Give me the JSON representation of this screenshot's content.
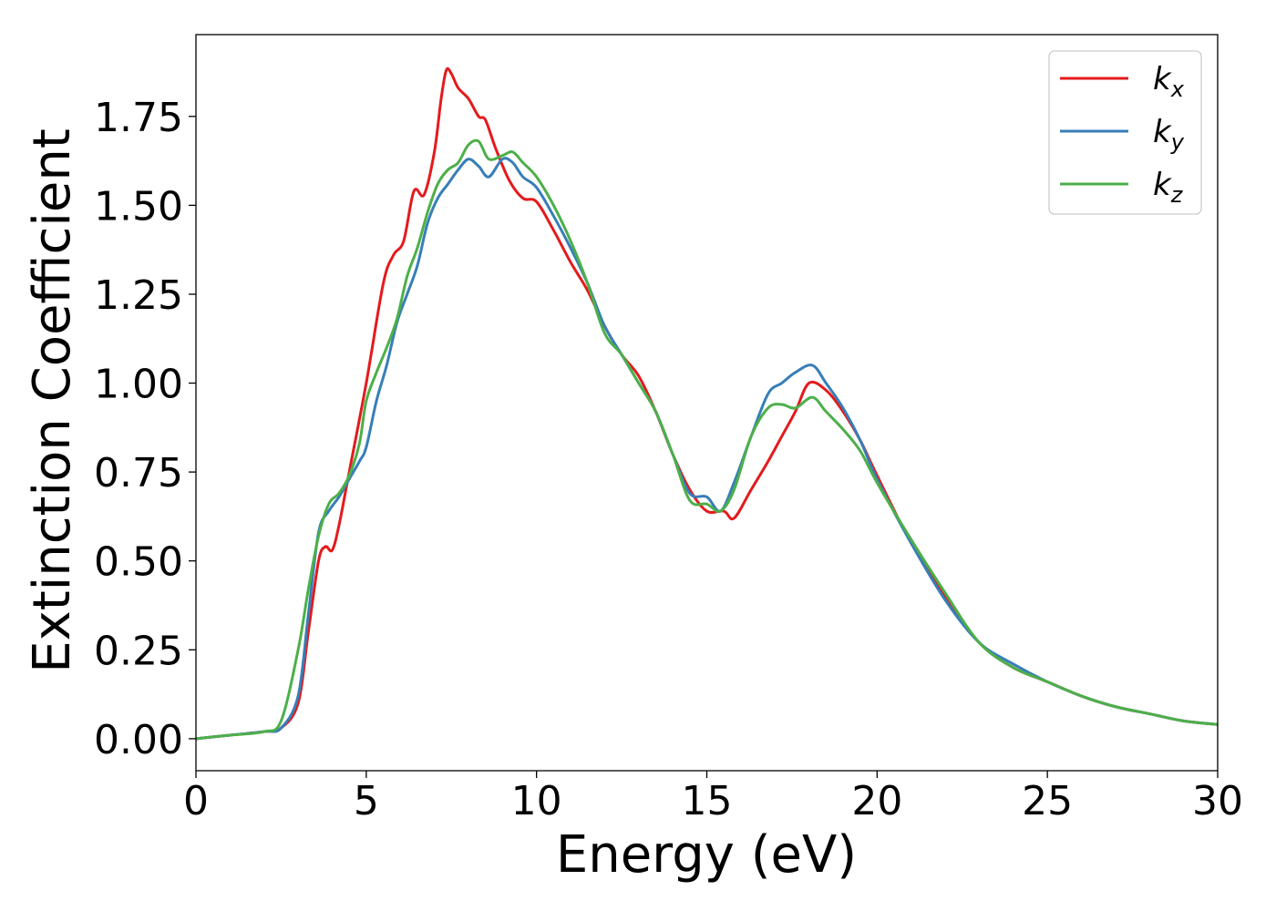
{
  "chart_data": {
    "type": "line",
    "xlabel": "Energy (eV)",
    "ylabel": "Extinction Coefficient",
    "xlim": [
      0,
      30
    ],
    "ylim": [
      -0.09,
      1.98
    ],
    "xticks": [
      0,
      5,
      10,
      15,
      20,
      25,
      30
    ],
    "xtick_labels": [
      "0",
      "5",
      "10",
      "15",
      "20",
      "25",
      "30"
    ],
    "yticks": [
      0.0,
      0.25,
      0.5,
      0.75,
      1.0,
      1.25,
      1.5,
      1.75
    ],
    "ytick_labels": [
      "0.00",
      "0.25",
      "0.50",
      "0.75",
      "1.00",
      "1.25",
      "1.50",
      "1.75"
    ],
    "grid": false,
    "legend_position": "top-right",
    "series": [
      {
        "name": "k_x",
        "label_base": "k",
        "label_sub": "x",
        "color": "#e41a1c",
        "x": [
          0,
          1,
          2,
          2.5,
          3,
          3.3,
          3.6,
          3.8,
          4.0,
          4.2,
          4.5,
          5.0,
          5.5,
          5.8,
          6.1,
          6.4,
          6.7,
          7.0,
          7.2,
          7.35,
          7.5,
          7.7,
          8.0,
          8.3,
          8.5,
          8.8,
          9.2,
          9.6,
          10.0,
          10.5,
          11,
          11.5,
          12,
          12.5,
          13,
          13.5,
          14,
          14.5,
          15,
          15.5,
          15.8,
          16.3,
          16.8,
          17.2,
          17.6,
          18.0,
          18.5,
          19,
          19.5,
          20,
          21,
          22,
          23,
          24,
          25,
          26,
          27,
          28,
          29,
          30
        ],
        "y": [
          0.0,
          0.01,
          0.02,
          0.03,
          0.1,
          0.3,
          0.5,
          0.54,
          0.53,
          0.6,
          0.75,
          1.0,
          1.28,
          1.36,
          1.4,
          1.54,
          1.53,
          1.65,
          1.8,
          1.88,
          1.87,
          1.83,
          1.8,
          1.75,
          1.74,
          1.66,
          1.57,
          1.52,
          1.51,
          1.43,
          1.34,
          1.26,
          1.16,
          1.08,
          1.02,
          0.92,
          0.8,
          0.7,
          0.64,
          0.64,
          0.62,
          0.7,
          0.78,
          0.85,
          0.92,
          1.0,
          0.98,
          0.92,
          0.84,
          0.74,
          0.55,
          0.4,
          0.27,
          0.2,
          0.16,
          0.12,
          0.09,
          0.07,
          0.05,
          0.04
        ]
      },
      {
        "name": "k_y",
        "label_base": "k",
        "label_sub": "y",
        "color": "#377eb8",
        "x": [
          0,
          1,
          2,
          2.5,
          3,
          3.3,
          3.6,
          3.9,
          4.2,
          4.5,
          4.8,
          5.0,
          5.3,
          5.6,
          5.9,
          6.2,
          6.5,
          6.8,
          7.1,
          7.4,
          7.7,
          8.0,
          8.3,
          8.6,
          9.0,
          9.3,
          9.6,
          10.0,
          10.5,
          11,
          11.5,
          12,
          12.5,
          13,
          13.5,
          14,
          14.5,
          15,
          15.4,
          15.8,
          16.3,
          16.8,
          17.2,
          17.6,
          18.1,
          18.5,
          19,
          19.5,
          20,
          21,
          22,
          23,
          24,
          25,
          26,
          27,
          28,
          29,
          30
        ],
        "y": [
          0.0,
          0.01,
          0.02,
          0.03,
          0.12,
          0.35,
          0.58,
          0.64,
          0.68,
          0.73,
          0.78,
          0.82,
          0.95,
          1.05,
          1.17,
          1.25,
          1.33,
          1.45,
          1.52,
          1.56,
          1.6,
          1.63,
          1.61,
          1.58,
          1.63,
          1.62,
          1.58,
          1.55,
          1.47,
          1.38,
          1.28,
          1.16,
          1.08,
          1.0,
          0.92,
          0.8,
          0.69,
          0.68,
          0.64,
          0.72,
          0.85,
          0.97,
          1.0,
          1.03,
          1.05,
          1.0,
          0.93,
          0.84,
          0.73,
          0.55,
          0.39,
          0.27,
          0.21,
          0.16,
          0.12,
          0.09,
          0.07,
          0.05,
          0.04
        ]
      },
      {
        "name": "k_z",
        "label_base": "k",
        "label_sub": "z",
        "color": "#4daf4a",
        "x": [
          0,
          1,
          2,
          2.5,
          3,
          3.3,
          3.6,
          3.9,
          4.2,
          4.5,
          4.8,
          5.0,
          5.3,
          5.6,
          5.9,
          6.2,
          6.5,
          6.8,
          7.1,
          7.4,
          7.7,
          8.0,
          8.3,
          8.6,
          9.0,
          9.3,
          9.6,
          10.0,
          10.5,
          11,
          11.5,
          12,
          12.5,
          13,
          13.5,
          14,
          14.5,
          15,
          15.4,
          15.8,
          16.3,
          16.8,
          17.2,
          17.6,
          18.1,
          18.5,
          19,
          19.5,
          20,
          21,
          22,
          23,
          24,
          25,
          26,
          27,
          28,
          29,
          30
        ],
        "y": [
          0.0,
          0.01,
          0.02,
          0.05,
          0.25,
          0.42,
          0.57,
          0.66,
          0.69,
          0.74,
          0.83,
          0.95,
          1.03,
          1.1,
          1.18,
          1.3,
          1.38,
          1.48,
          1.56,
          1.6,
          1.62,
          1.67,
          1.68,
          1.63,
          1.64,
          1.65,
          1.62,
          1.58,
          1.5,
          1.4,
          1.28,
          1.14,
          1.08,
          1.0,
          0.92,
          0.8,
          0.67,
          0.66,
          0.64,
          0.7,
          0.85,
          0.93,
          0.94,
          0.93,
          0.96,
          0.92,
          0.87,
          0.81,
          0.72,
          0.56,
          0.41,
          0.27,
          0.2,
          0.16,
          0.12,
          0.09,
          0.07,
          0.05,
          0.04
        ]
      }
    ]
  }
}
